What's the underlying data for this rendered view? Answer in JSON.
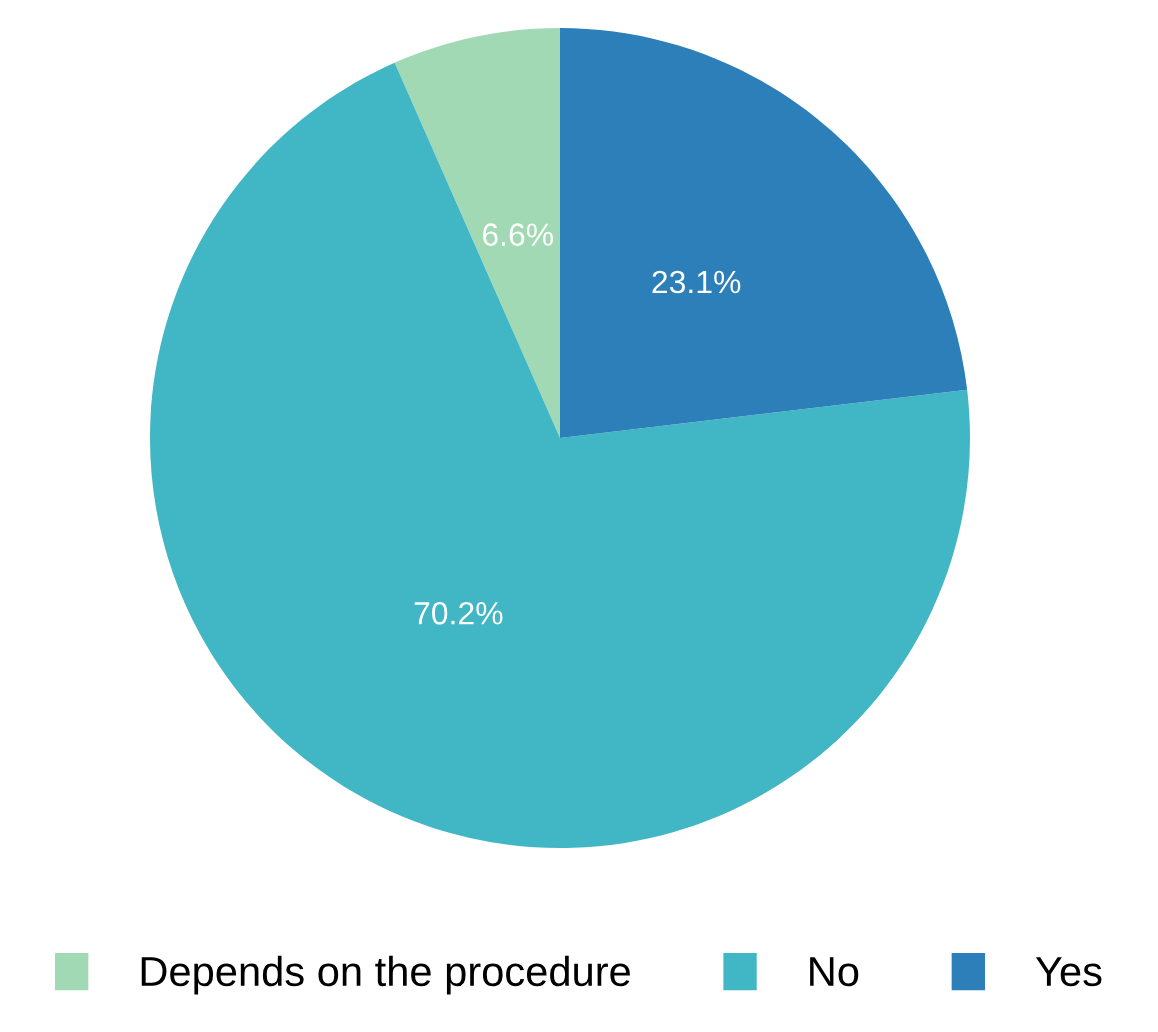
{
  "chart_data": {
    "type": "pie",
    "categories": [
      "Depends on the procedure",
      "No",
      "Yes"
    ],
    "values": [
      6.6,
      70.2,
      23.1
    ],
    "colors": [
      "#a1d9b4",
      "#41b6c4",
      "#2c7fb8"
    ],
    "value_labels": [
      "6.6%",
      "70.2%",
      "23.1%"
    ],
    "legend": "bottom"
  }
}
